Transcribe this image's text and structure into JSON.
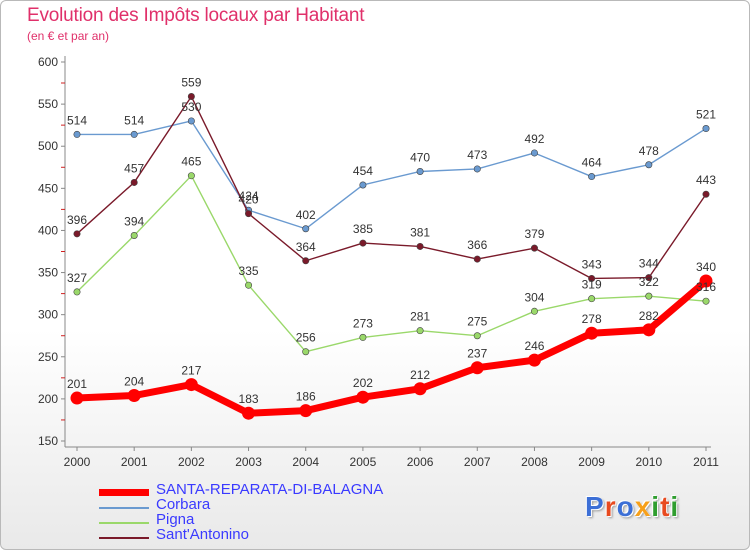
{
  "title": "Evolution des Impôts locaux par Habitant",
  "subtitle": "(en € et par an)",
  "logo": {
    "text": "Proxiti",
    "letter_colors": [
      "#3c6fd6",
      "#e84a1f",
      "#3c6fd6",
      "#f7a01a",
      "#2f9e2f",
      "#e84a1f",
      "#2f9e2f"
    ]
  },
  "chart_data": {
    "type": "line",
    "title": "Evolution des Impôts locaux par Habitant",
    "subtitle": "(en € et par an)",
    "xlabel": "",
    "ylabel": "",
    "ylim": [
      150,
      600
    ],
    "yticks": [
      "150",
      "200",
      "250",
      "300",
      "350",
      "400",
      "450",
      "500",
      "550",
      "600"
    ],
    "categories": [
      "2000",
      "2001",
      "2002",
      "2003",
      "2004",
      "2005",
      "2006",
      "2007",
      "2008",
      "2009",
      "2010",
      "2011"
    ],
    "grid": false,
    "legend_position": "bottom-left",
    "series": [
      {
        "name": "SANTA-REPARATA-DI-BALAGNA",
        "color": "#ff0000",
        "values": [
          201,
          204,
          217,
          183,
          186,
          202,
          212,
          237,
          246,
          278,
          282,
          340
        ],
        "labels": [
          "201",
          "204",
          "217",
          "183",
          "186",
          "202",
          "212",
          "237",
          "246",
          "278",
          "282",
          "340"
        ]
      },
      {
        "name": "Corbara",
        "color": "#6a9ad0",
        "values": [
          514,
          514,
          530,
          424,
          402,
          454,
          470,
          473,
          492,
          464,
          478,
          521
        ],
        "labels": [
          "514",
          "514",
          "530",
          "424",
          "402",
          "454",
          "470",
          "473",
          "492",
          "464",
          "478",
          "521"
        ]
      },
      {
        "name": "Pigna",
        "color": "#9ad86a",
        "values": [
          327,
          394,
          465,
          335,
          256,
          273,
          281,
          275,
          304,
          319,
          322,
          316
        ],
        "labels": [
          "327",
          "394",
          "465",
          "335",
          "256",
          "273",
          "281",
          "275",
          "304",
          "319",
          "322",
          "316"
        ]
      },
      {
        "name": "Sant'Antonino",
        "color": "#7a1a2a",
        "values": [
          396,
          457,
          559,
          420,
          364,
          385,
          381,
          366,
          379,
          343,
          344,
          443
        ],
        "labels": [
          "396",
          "457",
          "559",
          "420",
          "364",
          "385",
          "381",
          "366",
          "379",
          "343",
          "344",
          "443"
        ]
      }
    ]
  }
}
